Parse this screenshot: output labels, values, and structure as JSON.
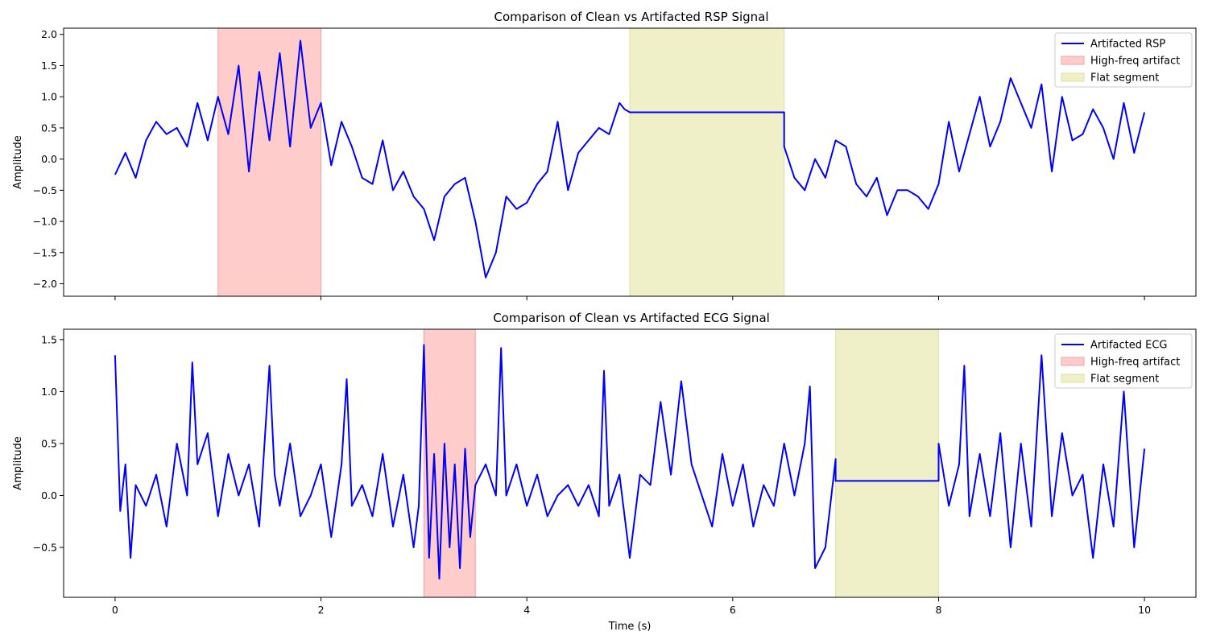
{
  "chart_data": [
    {
      "type": "line",
      "title": "Comparison of Clean vs Artifacted RSP Signal",
      "xlabel": "",
      "ylabel": "Amplitude",
      "xlim": [
        -0.5,
        10.5
      ],
      "ylim": [
        -2.2,
        2.1
      ],
      "xticks": [
        0,
        2,
        4,
        6,
        8,
        10
      ],
      "yticks": [
        -2.0,
        -1.5,
        -1.0,
        -0.5,
        0.0,
        0.5,
        1.0,
        1.5,
        2.0
      ],
      "ytick_labels": [
        "−2.0",
        "−1.5",
        "−1.0",
        "−0.5",
        "0.0",
        "0.5",
        "1.0",
        "1.5",
        "2.0"
      ],
      "show_xtick_labels": false,
      "legend_position": "top-right",
      "legend": [
        "Artifacted RSP",
        "High-freq artifact",
        "Flat segment"
      ],
      "regions": [
        {
          "label": "High-freq artifact",
          "x": [
            1.0,
            2.0
          ],
          "color": "#ffcccc",
          "edge": "#f5a3a3"
        },
        {
          "label": "Flat segment",
          "x": [
            5.0,
            6.5
          ],
          "color": "#f0f0c8",
          "edge": "#e0e0a0"
        }
      ],
      "series": [
        {
          "name": "Artifacted RSP",
          "color": "#0000ff",
          "x": [
            0.0,
            0.1,
            0.2,
            0.3,
            0.4,
            0.5,
            0.6,
            0.7,
            0.8,
            0.9,
            1.0,
            1.1,
            1.2,
            1.3,
            1.4,
            1.5,
            1.6,
            1.7,
            1.8,
            1.9,
            2.0,
            2.1,
            2.2,
            2.3,
            2.4,
            2.5,
            2.6,
            2.7,
            2.8,
            2.9,
            3.0,
            3.1,
            3.2,
            3.3,
            3.4,
            3.5,
            3.6,
            3.7,
            3.8,
            3.9,
            4.0,
            4.1,
            4.2,
            4.3,
            4.4,
            4.5,
            4.6,
            4.7,
            4.8,
            4.9,
            4.95,
            5.0,
            6.5,
            6.5,
            6.6,
            6.7,
            6.8,
            6.9,
            7.0,
            7.1,
            7.2,
            7.3,
            7.4,
            7.5,
            7.6,
            7.7,
            7.8,
            7.9,
            8.0,
            8.1,
            8.2,
            8.3,
            8.4,
            8.5,
            8.6,
            8.7,
            8.8,
            8.9,
            9.0,
            9.1,
            9.2,
            9.3,
            9.4,
            9.5,
            9.6,
            9.7,
            9.8,
            9.9,
            10.0
          ],
          "values": [
            -0.25,
            0.1,
            -0.3,
            0.3,
            0.6,
            0.4,
            0.5,
            0.2,
            0.9,
            0.3,
            1.0,
            0.4,
            1.5,
            -0.2,
            1.4,
            0.3,
            1.7,
            0.2,
            1.9,
            0.5,
            0.9,
            -0.1,
            0.6,
            0.2,
            -0.3,
            -0.4,
            0.3,
            -0.5,
            -0.2,
            -0.6,
            -0.8,
            -1.3,
            -0.6,
            -0.4,
            -0.3,
            -1.0,
            -1.9,
            -1.5,
            -0.6,
            -0.8,
            -0.7,
            -0.4,
            -0.2,
            0.6,
            -0.5,
            0.1,
            0.3,
            0.5,
            0.4,
            0.9,
            0.8,
            0.75,
            0.75,
            0.2,
            -0.3,
            -0.5,
            0.0,
            -0.3,
            0.3,
            0.2,
            -0.4,
            -0.6,
            -0.3,
            -0.9,
            -0.5,
            -0.5,
            -0.6,
            -0.8,
            -0.4,
            0.6,
            -0.2,
            0.4,
            1.0,
            0.2,
            0.6,
            1.3,
            0.9,
            0.5,
            1.2,
            -0.2,
            1.0,
            0.3,
            0.4,
            0.8,
            0.5,
            0.0,
            0.9,
            0.1,
            0.75
          ]
        }
      ]
    },
    {
      "type": "line",
      "title": "Comparison of Clean vs Artifacted ECG Signal",
      "xlabel": "Time (s)",
      "ylabel": "Amplitude",
      "xlim": [
        -0.5,
        10.5
      ],
      "ylim": [
        -0.98,
        1.6
      ],
      "xticks": [
        0,
        2,
        4,
        6,
        8,
        10
      ],
      "yticks": [
        -0.5,
        0.0,
        0.5,
        1.0,
        1.5
      ],
      "ytick_labels": [
        "−0.5",
        "0.0",
        "0.5",
        "1.0",
        "1.5"
      ],
      "show_xtick_labels": true,
      "legend_position": "top-right",
      "legend": [
        "Artifacted ECG",
        "High-freq artifact",
        "Flat segment"
      ],
      "regions": [
        {
          "label": "High-freq artifact",
          "x": [
            3.0,
            3.5
          ],
          "color": "#ffcccc",
          "edge": "#f5a3a3"
        },
        {
          "label": "Flat segment",
          "x": [
            7.0,
            8.0
          ],
          "color": "#f0f0c8",
          "edge": "#e0e0a0"
        }
      ],
      "series": [
        {
          "name": "Artifacted ECG",
          "color": "#0000ff",
          "x": [
            0.0,
            0.05,
            0.1,
            0.15,
            0.2,
            0.3,
            0.4,
            0.5,
            0.6,
            0.7,
            0.75,
            0.8,
            0.9,
            1.0,
            1.1,
            1.2,
            1.3,
            1.4,
            1.5,
            1.55,
            1.6,
            1.7,
            1.8,
            1.9,
            2.0,
            2.1,
            2.2,
            2.25,
            2.3,
            2.4,
            2.5,
            2.6,
            2.7,
            2.8,
            2.9,
            2.95,
            3.0,
            3.05,
            3.1,
            3.15,
            3.2,
            3.25,
            3.3,
            3.35,
            3.4,
            3.45,
            3.5,
            3.6,
            3.7,
            3.75,
            3.8,
            3.9,
            4.0,
            4.1,
            4.2,
            4.3,
            4.4,
            4.5,
            4.6,
            4.7,
            4.75,
            4.8,
            4.9,
            5.0,
            5.1,
            5.2,
            5.3,
            5.4,
            5.5,
            5.6,
            5.7,
            5.8,
            5.9,
            6.0,
            6.1,
            6.2,
            6.3,
            6.4,
            6.5,
            6.6,
            6.7,
            6.75,
            6.8,
            6.9,
            7.0,
            7.0,
            8.0,
            8.0,
            8.1,
            8.2,
            8.25,
            8.3,
            8.4,
            8.5,
            8.6,
            8.7,
            8.8,
            8.9,
            9.0,
            9.1,
            9.2,
            9.3,
            9.4,
            9.5,
            9.6,
            9.7,
            9.8,
            9.9,
            10.0
          ],
          "values": [
            1.35,
            -0.15,
            0.3,
            -0.6,
            0.1,
            -0.1,
            0.2,
            -0.3,
            0.5,
            0.0,
            1.28,
            0.3,
            0.6,
            -0.2,
            0.4,
            0.0,
            0.3,
            -0.3,
            1.25,
            0.2,
            -0.1,
            0.5,
            -0.2,
            0.0,
            0.3,
            -0.4,
            0.3,
            1.12,
            -0.1,
            0.1,
            -0.2,
            0.4,
            -0.3,
            0.2,
            -0.5,
            -0.1,
            1.45,
            -0.6,
            0.4,
            -0.8,
            0.5,
            -0.5,
            0.3,
            -0.7,
            0.45,
            -0.4,
            0.1,
            0.3,
            0.0,
            1.42,
            0.0,
            0.3,
            -0.1,
            0.2,
            -0.2,
            0.0,
            0.1,
            -0.1,
            0.1,
            -0.2,
            1.2,
            -0.1,
            0.2,
            -0.6,
            0.2,
            0.1,
            0.9,
            0.2,
            1.1,
            0.3,
            0.0,
            -0.3,
            0.4,
            -0.1,
            0.3,
            -0.3,
            0.1,
            -0.1,
            0.5,
            0.0,
            0.5,
            1.05,
            -0.7,
            -0.5,
            0.35,
            0.14,
            0.14,
            0.5,
            -0.1,
            0.3,
            1.25,
            -0.2,
            0.4,
            -0.2,
            0.6,
            -0.5,
            0.5,
            -0.3,
            1.35,
            -0.2,
            0.6,
            0.0,
            0.2,
            -0.6,
            0.3,
            -0.3,
            1.0,
            -0.5,
            0.45
          ]
        }
      ]
    }
  ]
}
